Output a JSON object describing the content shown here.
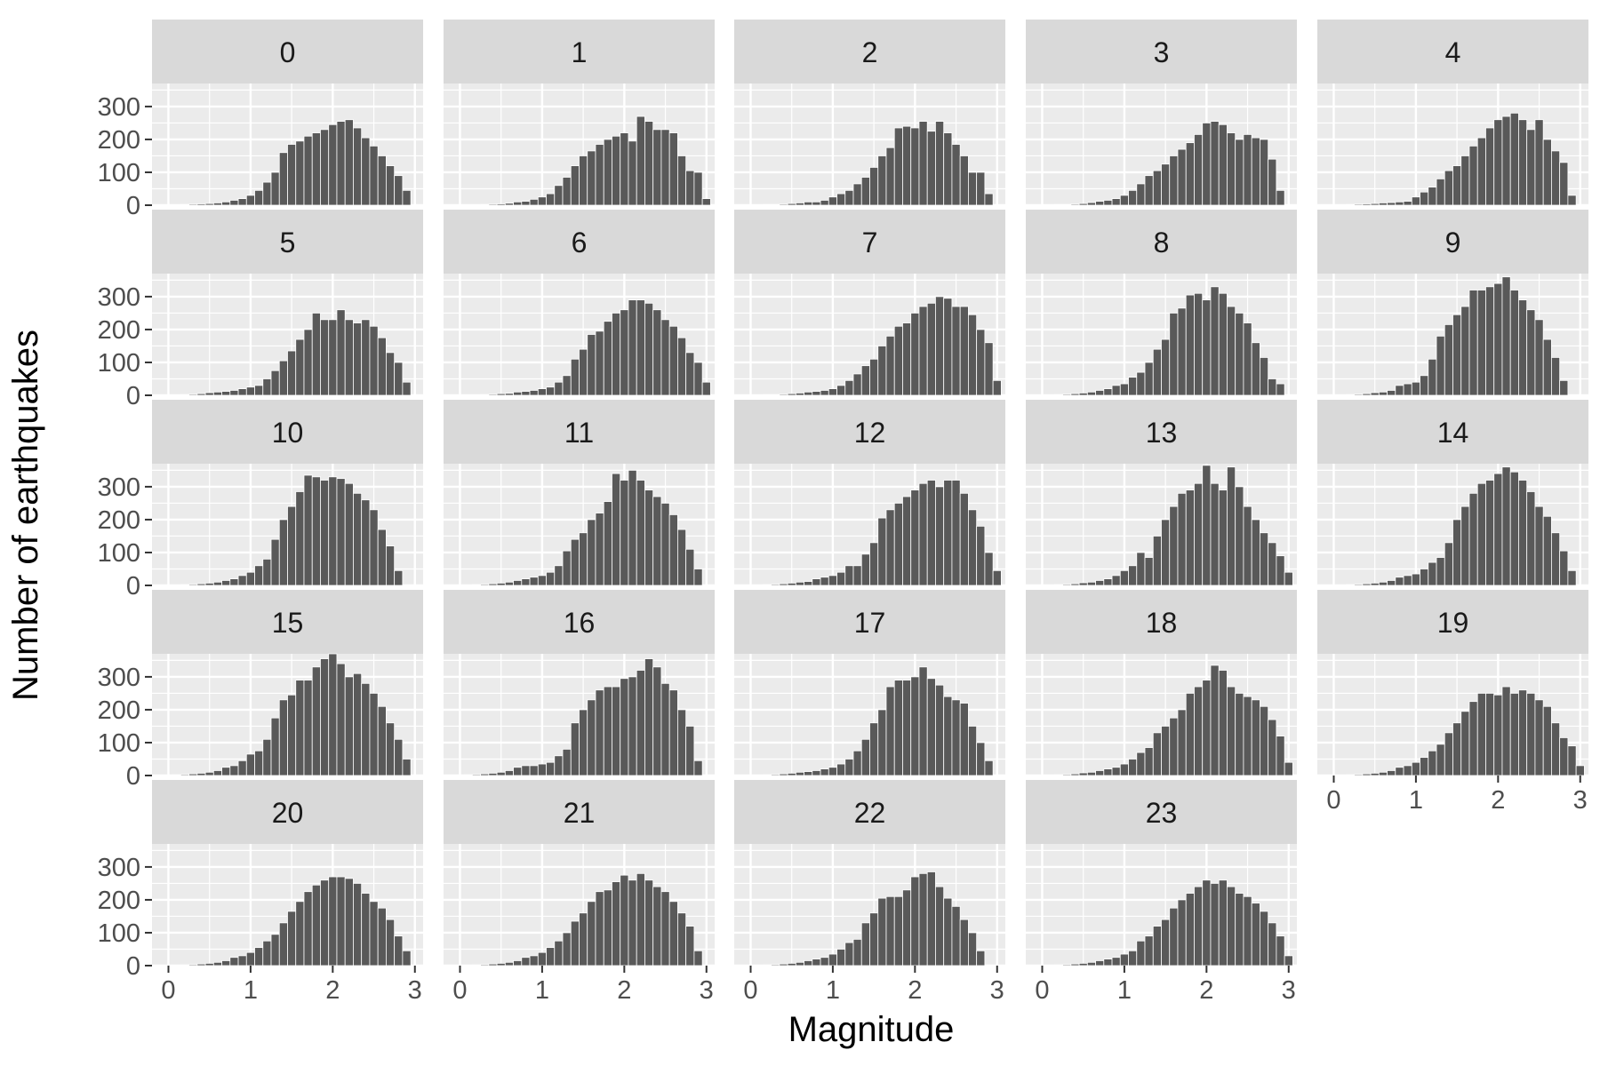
{
  "chart_data": {
    "type": "bar",
    "chart_kind": "faceted histogram",
    "xlabel": "Magnitude",
    "ylabel": "Number of earthquakes",
    "x_ticks": [
      0,
      1,
      2,
      3
    ],
    "y_ticks": [
      0,
      100,
      200,
      300
    ],
    "x_tick_labels": [
      "0",
      "1",
      "2",
      "3"
    ],
    "y_tick_labels": [
      "0",
      "100",
      "200",
      "300"
    ],
    "xlim": [
      -0.2,
      3.1
    ],
    "ylim": [
      0,
      370
    ],
    "grid": true,
    "bin_width": 0.1,
    "bins_x": [
      0.0,
      0.1,
      0.2,
      0.3,
      0.4,
      0.5,
      0.6,
      0.7,
      0.8,
      0.9,
      1.0,
      1.1,
      1.2,
      1.3,
      1.4,
      1.5,
      1.6,
      1.7,
      1.8,
      1.9,
      2.0,
      2.1,
      2.2,
      2.3,
      2.4,
      2.5,
      2.6,
      2.7,
      2.8,
      2.9,
      3.0
    ],
    "facet_columns": 5,
    "facets": [
      {
        "label": "0",
        "values": [
          0,
          1,
          2,
          3,
          4,
          5,
          7,
          10,
          15,
          20,
          30,
          45,
          70,
          100,
          160,
          185,
          195,
          210,
          220,
          230,
          245,
          255,
          260,
          235,
          205,
          180,
          150,
          120,
          90,
          45,
          0
        ]
      },
      {
        "label": "1",
        "values": [
          0,
          1,
          1,
          2,
          3,
          4,
          6,
          10,
          12,
          18,
          25,
          35,
          60,
          85,
          120,
          150,
          165,
          185,
          200,
          210,
          220,
          195,
          270,
          255,
          230,
          230,
          220,
          150,
          105,
          100,
          20
        ]
      },
      {
        "label": "2",
        "values": [
          0,
          1,
          2,
          2,
          3,
          5,
          7,
          10,
          10,
          15,
          25,
          35,
          45,
          65,
          85,
          115,
          150,
          175,
          235,
          240,
          235,
          255,
          225,
          255,
          220,
          185,
          150,
          100,
          100,
          35,
          0
        ]
      },
      {
        "label": "3",
        "values": [
          0,
          1,
          2,
          2,
          3,
          5,
          8,
          12,
          15,
          20,
          30,
          45,
          65,
          90,
          105,
          125,
          150,
          170,
          190,
          215,
          250,
          255,
          245,
          220,
          200,
          215,
          205,
          200,
          140,
          45,
          0
        ]
      },
      {
        "label": "4",
        "values": [
          0,
          1,
          2,
          3,
          4,
          5,
          7,
          8,
          10,
          12,
          25,
          40,
          55,
          80,
          105,
          120,
          150,
          180,
          205,
          235,
          260,
          270,
          280,
          260,
          230,
          260,
          200,
          165,
          130,
          30,
          0
        ]
      },
      {
        "label": "5",
        "values": [
          0,
          1,
          2,
          3,
          5,
          8,
          10,
          12,
          15,
          20,
          25,
          30,
          50,
          75,
          105,
          135,
          170,
          200,
          250,
          230,
          230,
          260,
          230,
          220,
          230,
          210,
          175,
          130,
          100,
          40,
          0
        ]
      },
      {
        "label": "6",
        "values": [
          0,
          1,
          1,
          2,
          3,
          5,
          6,
          10,
          12,
          15,
          20,
          25,
          40,
          60,
          110,
          140,
          185,
          195,
          225,
          250,
          260,
          290,
          290,
          280,
          260,
          230,
          210,
          175,
          130,
          100,
          40
        ]
      },
      {
        "label": "7",
        "values": [
          0,
          1,
          2,
          2,
          3,
          5,
          7,
          10,
          12,
          15,
          20,
          30,
          45,
          65,
          90,
          110,
          150,
          180,
          210,
          220,
          250,
          270,
          280,
          300,
          295,
          270,
          270,
          245,
          200,
          160,
          45
        ]
      },
      {
        "label": "8",
        "values": [
          0,
          1,
          2,
          3,
          5,
          7,
          10,
          15,
          20,
          30,
          35,
          55,
          70,
          100,
          140,
          170,
          250,
          265,
          305,
          310,
          290,
          330,
          310,
          270,
          250,
          220,
          160,
          115,
          50,
          35,
          0
        ]
      },
      {
        "label": "9",
        "values": [
          0,
          1,
          2,
          3,
          5,
          8,
          10,
          15,
          30,
          35,
          40,
          60,
          110,
          180,
          215,
          245,
          270,
          320,
          320,
          330,
          340,
          360,
          320,
          290,
          260,
          230,
          170,
          115,
          45,
          0,
          0
        ]
      },
      {
        "label": "10",
        "values": [
          0,
          1,
          2,
          3,
          5,
          7,
          10,
          15,
          20,
          30,
          40,
          60,
          80,
          140,
          200,
          240,
          285,
          335,
          330,
          320,
          330,
          325,
          310,
          280,
          260,
          230,
          170,
          120,
          45,
          0,
          0
        ]
      },
      {
        "label": "11",
        "values": [
          0,
          1,
          2,
          3,
          5,
          7,
          10,
          15,
          20,
          25,
          30,
          40,
          60,
          105,
          140,
          160,
          200,
          220,
          255,
          340,
          320,
          350,
          320,
          290,
          270,
          250,
          215,
          170,
          110,
          50,
          0
        ]
      },
      {
        "label": "12",
        "values": [
          0,
          1,
          2,
          3,
          5,
          7,
          10,
          12,
          20,
          25,
          30,
          40,
          60,
          60,
          95,
          130,
          205,
          230,
          250,
          270,
          290,
          310,
          320,
          300,
          320,
          320,
          280,
          230,
          180,
          100,
          45
        ]
      },
      {
        "label": "13",
        "values": [
          0,
          1,
          2,
          3,
          5,
          8,
          10,
          15,
          20,
          30,
          45,
          60,
          100,
          85,
          150,
          200,
          240,
          280,
          290,
          310,
          365,
          310,
          290,
          360,
          300,
          240,
          200,
          160,
          130,
          90,
          40
        ]
      },
      {
        "label": "14",
        "values": [
          0,
          1,
          2,
          3,
          5,
          7,
          10,
          15,
          25,
          30,
          35,
          50,
          70,
          85,
          130,
          200,
          240,
          280,
          310,
          320,
          340,
          360,
          345,
          320,
          285,
          240,
          210,
          160,
          105,
          45,
          0
        ]
      },
      {
        "label": "15",
        "values": [
          0,
          2,
          3,
          5,
          7,
          10,
          15,
          25,
          30,
          45,
          65,
          75,
          110,
          175,
          230,
          245,
          290,
          290,
          330,
          355,
          370,
          340,
          300,
          310,
          280,
          250,
          210,
          160,
          110,
          50,
          0
        ]
      },
      {
        "label": "16",
        "values": [
          0,
          2,
          3,
          5,
          7,
          10,
          15,
          25,
          30,
          30,
          35,
          40,
          60,
          80,
          160,
          200,
          230,
          260,
          270,
          270,
          295,
          300,
          320,
          355,
          330,
          280,
          260,
          200,
          150,
          45,
          0
        ]
      },
      {
        "label": "17",
        "values": [
          0,
          1,
          2,
          3,
          5,
          7,
          10,
          12,
          15,
          20,
          25,
          35,
          50,
          75,
          110,
          160,
          200,
          270,
          290,
          290,
          300,
          330,
          295,
          275,
          240,
          230,
          220,
          150,
          100,
          45,
          0
        ]
      },
      {
        "label": "18",
        "values": [
          0,
          1,
          2,
          3,
          5,
          8,
          10,
          15,
          20,
          25,
          35,
          50,
          70,
          85,
          130,
          150,
          175,
          200,
          250,
          270,
          290,
          335,
          320,
          270,
          250,
          240,
          230,
          210,
          170,
          120,
          40
        ]
      },
      {
        "label": "19",
        "values": [
          0,
          1,
          2,
          3,
          5,
          7,
          10,
          15,
          25,
          30,
          40,
          55,
          75,
          95,
          130,
          160,
          195,
          225,
          250,
          250,
          245,
          270,
          250,
          260,
          250,
          230,
          210,
          160,
          115,
          90,
          30
        ]
      },
      {
        "label": "20",
        "values": [
          0,
          1,
          2,
          3,
          5,
          7,
          10,
          15,
          25,
          30,
          40,
          55,
          75,
          95,
          130,
          165,
          195,
          225,
          245,
          260,
          270,
          270,
          265,
          250,
          220,
          195,
          175,
          140,
          90,
          45,
          0
        ]
      },
      {
        "label": "21",
        "values": [
          0,
          1,
          2,
          3,
          5,
          7,
          10,
          15,
          25,
          30,
          40,
          55,
          75,
          100,
          135,
          160,
          195,
          225,
          230,
          255,
          275,
          260,
          280,
          260,
          240,
          225,
          195,
          160,
          120,
          45,
          0
        ]
      },
      {
        "label": "22",
        "values": [
          0,
          1,
          2,
          3,
          5,
          7,
          10,
          15,
          20,
          25,
          35,
          50,
          70,
          80,
          130,
          160,
          205,
          210,
          210,
          230,
          270,
          280,
          285,
          240,
          205,
          180,
          140,
          100,
          45,
          0,
          0
        ]
      },
      {
        "label": "23",
        "values": [
          0,
          1,
          2,
          3,
          5,
          7,
          10,
          15,
          20,
          25,
          35,
          45,
          75,
          90,
          120,
          140,
          175,
          200,
          220,
          240,
          260,
          250,
          260,
          240,
          220,
          210,
          190,
          165,
          130,
          90,
          30
        ]
      }
    ]
  }
}
